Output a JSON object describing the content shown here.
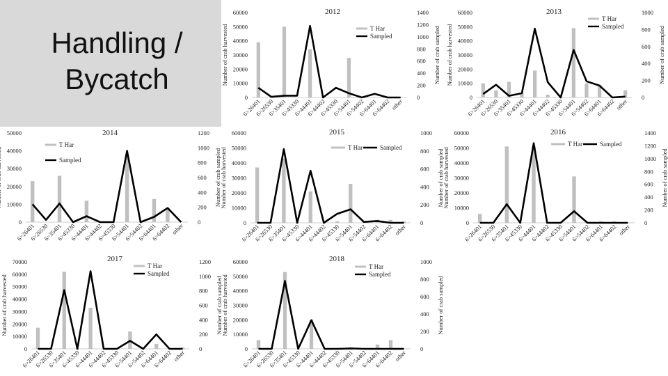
{
  "slide": {
    "title": "Handling /\nBycatch"
  },
  "chart_data": [
    {
      "type": "bar",
      "title": "2012",
      "categories": [
        "6>26401",
        "6>26530",
        "6>35401",
        "6>45330",
        "6>44401",
        "6>44402",
        "6>45330",
        "6>54401",
        "6>54402",
        "6>64401",
        "6>64402",
        "other"
      ],
      "ylabel": "Number of crab harvested",
      "y2label": "Number of crab sampled",
      "ylim": [
        0,
        60000
      ],
      "y2lim": [
        0,
        1400
      ],
      "ytick_labels": [
        "0",
        "10000",
        "20000",
        "30000",
        "40000",
        "50000",
        "60000"
      ],
      "y2tick_labels": [
        "0",
        "200",
        "400",
        "600",
        "800",
        "1000",
        "1200",
        "1400"
      ],
      "legend_position": "top-right",
      "series": [
        {
          "name": "T Har",
          "type": "bar",
          "axis": "left",
          "color": "#c0c0c0",
          "values": [
            39000,
            0,
            50000,
            0,
            34000,
            0,
            0,
            28000,
            0,
            0,
            0,
            0
          ]
        },
        {
          "name": "Sampled",
          "type": "line",
          "axis": "right",
          "color": "#000000",
          "values": [
            160,
            10,
            30,
            30,
            1180,
            0,
            160,
            70,
            0,
            60,
            0,
            0
          ]
        }
      ]
    },
    {
      "type": "bar",
      "title": "2013",
      "categories": [
        "6>26401",
        "6>26530",
        "6>35401",
        "6>45330",
        "6>44401",
        "6>44402",
        "6>45330",
        "6>54401",
        "6>54402",
        "6>64401",
        "6>64402",
        "other"
      ],
      "ylabel": "Number of crab harvested",
      "y2label": "Number of crab sampled",
      "ylim": [
        0,
        60000
      ],
      "y2lim": [
        0,
        1000
      ],
      "ytick_labels": [
        "0",
        "10000",
        "20000",
        "30000",
        "40000",
        "50000",
        "60000"
      ],
      "y2tick_labels": [
        "0",
        "200",
        "400",
        "600",
        "800",
        "1000"
      ],
      "legend_position": "top-right",
      "series": [
        {
          "name": "T Har",
          "type": "bar",
          "axis": "left",
          "color": "#c0c0c0",
          "values": [
            10000,
            5000,
            11000,
            3000,
            19000,
            2000,
            0,
            49000,
            10000,
            9000,
            0,
            5000
          ]
        },
        {
          "name": "Sampled",
          "type": "line",
          "axis": "right",
          "color": "#000000",
          "values": [
            40,
            150,
            20,
            50,
            810,
            180,
            0,
            560,
            190,
            140,
            0,
            10
          ]
        }
      ]
    },
    {
      "type": "bar",
      "title": "2014",
      "categories": [
        "6>26401",
        "6>26530",
        "6>35401",
        "6>45330",
        "6>44401",
        "6>44402",
        "6>45330",
        "6>54401",
        "6>54402",
        "6>64401",
        "6>64402",
        "other"
      ],
      "ylabel": "Number of crab harvested",
      "y2label": "Number of crab sampled",
      "ylim": [
        0,
        50000
      ],
      "y2lim": [
        0,
        1200
      ],
      "ytick_labels": [
        "0",
        "10000",
        "20000",
        "30000",
        "40000",
        "50000"
      ],
      "y2tick_labels": [
        "0",
        "200",
        "400",
        "600",
        "800",
        "1000",
        "1200"
      ],
      "legend_position": "top-left",
      "series": [
        {
          "name": "T Har",
          "type": "bar",
          "axis": "left",
          "color": "#c0c0c0",
          "values": [
            23000,
            0,
            26000,
            0,
            12000,
            0,
            0,
            37000,
            0,
            13000,
            8000,
            0
          ]
        },
        {
          "name": "Sampled",
          "type": "line",
          "axis": "right",
          "color": "#000000",
          "values": [
            240,
            30,
            250,
            0,
            80,
            0,
            0,
            960,
            0,
            70,
            190,
            0
          ]
        }
      ]
    },
    {
      "type": "bar",
      "title": "2015",
      "categories": [
        "6>26401",
        "6>26530",
        "6>35401",
        "6>45330",
        "6>44401",
        "6>44402",
        "6>45330",
        "6>54401",
        "6>54402",
        "6>64401",
        "6>64402",
        "other"
      ],
      "ylabel": "Number of crab harvested",
      "y2label": "Number of crab sampled",
      "ylim": [
        0,
        60000
      ],
      "y2lim": [
        0,
        1000
      ],
      "ytick_labels": [
        "0",
        "10000",
        "20000",
        "30000",
        "40000",
        "50000",
        "60000"
      ],
      "y2tick_labels": [
        "0",
        "200",
        "400",
        "600",
        "800",
        "1000"
      ],
      "legend_position": "top-right",
      "series": [
        {
          "name": "T Har",
          "type": "bar",
          "axis": "left",
          "color": "#c0c0c0",
          "values": [
            37000,
            0,
            43000,
            0,
            21000,
            0,
            1000,
            26000,
            1000,
            2000,
            2000,
            1000
          ]
        },
        {
          "name": "Sampled",
          "type": "line",
          "axis": "right",
          "color": "#000000",
          "values": [
            0,
            0,
            820,
            0,
            580,
            0,
            100,
            150,
            10,
            20,
            0,
            0
          ]
        }
      ]
    },
    {
      "type": "bar",
      "title": "2016",
      "categories": [
        "6>26401",
        "6>26530",
        "6>35401",
        "6>45330",
        "6>44401",
        "6>44402",
        "6>45330",
        "6>54401",
        "6>54402",
        "6>64401",
        "6>64402",
        "other"
      ],
      "ylabel": "Number of crab harvested",
      "y2label": "Number of crab sampled",
      "ylim": [
        0,
        60000
      ],
      "y2lim": [
        0,
        1400
      ],
      "ytick_labels": [
        "0",
        "10000",
        "20000",
        "30000",
        "40000",
        "50000",
        "60000"
      ],
      "y2tick_labels": [
        "0",
        "200",
        "400",
        "600",
        "800",
        "1000",
        "1200",
        "1400"
      ],
      "legend_position": "top-right",
      "series": [
        {
          "name": "T Har",
          "type": "bar",
          "axis": "left",
          "color": "#c0c0c0",
          "values": [
            6000,
            0,
            51000,
            0,
            51000,
            0,
            0,
            31000,
            0,
            1000,
            1000,
            0
          ]
        },
        {
          "name": "Sampled",
          "type": "line",
          "axis": "right",
          "color": "#000000",
          "values": [
            0,
            0,
            290,
            0,
            1240,
            0,
            0,
            180,
            0,
            0,
            0,
            0
          ]
        }
      ]
    },
    {
      "type": "bar",
      "title": "2017",
      "categories": [
        "6>26401",
        "6>26530",
        "6>35401",
        "6>45330",
        "6>44401",
        "6>44402",
        "6>45330",
        "6>54401",
        "6>54402",
        "6>64401",
        "6>64402",
        "other"
      ],
      "ylabel": "Number of crab harvested",
      "y2label": "Number of crab sampled",
      "ylim": [
        0,
        70000
      ],
      "y2lim": [
        0,
        1200
      ],
      "ytick_labels": [
        "0",
        "10000",
        "20000",
        "30000",
        "40000",
        "50000",
        "60000",
        "70000"
      ],
      "y2tick_labels": [
        "0",
        "200",
        "400",
        "600",
        "800",
        "1000",
        "1200"
      ],
      "legend_position": "top-right",
      "series": [
        {
          "name": "T Har",
          "type": "bar",
          "axis": "left",
          "color": "#c0c0c0",
          "values": [
            17000,
            0,
            62000,
            0,
            33000,
            0,
            0,
            14000,
            0,
            4000,
            0,
            1000
          ]
        },
        {
          "name": "Sampled",
          "type": "line",
          "axis": "right",
          "color": "#000000",
          "values": [
            0,
            0,
            810,
            0,
            1070,
            0,
            0,
            110,
            0,
            200,
            0,
            0
          ]
        }
      ]
    },
    {
      "type": "bar",
      "title": "2018",
      "categories": [
        "6>26401",
        "6>26530",
        "6>35401",
        "6>45330",
        "6>44401",
        "6>44402",
        "6>45330",
        "6>54401",
        "6>54402",
        "6>64401",
        "6>64402",
        "other"
      ],
      "ylabel": "Number of crab harvested",
      "y2label": "Number of crab sampled",
      "ylim": [
        0,
        60000
      ],
      "y2lim": [
        0,
        1000
      ],
      "ytick_labels": [
        "0",
        "10000",
        "20000",
        "30000",
        "40000",
        "50000",
        "60000"
      ],
      "y2tick_labels": [
        "0",
        "200",
        "400",
        "600",
        "800",
        "1000"
      ],
      "legend_position": "top-right",
      "series": [
        {
          "name": "T Har",
          "type": "bar",
          "axis": "left",
          "color": "#c0c0c0",
          "values": [
            6000,
            0,
            53000,
            0,
            20000,
            0,
            0,
            1000,
            0,
            3000,
            6000,
            0
          ]
        },
        {
          "name": "Sampled",
          "type": "line",
          "axis": "right",
          "color": "#000000",
          "values": [
            0,
            0,
            780,
            0,
            330,
            0,
            0,
            5,
            0,
            0,
            0,
            0
          ]
        }
      ]
    }
  ]
}
